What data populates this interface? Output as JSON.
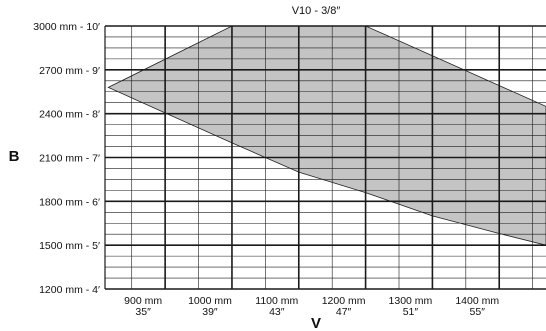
{
  "chart_data": {
    "type": "area",
    "title": "V10 - 3/8″",
    "xlabel": "V",
    "ylabel": "B",
    "xlim": [
      810,
      1470
    ],
    "ylim": [
      1200,
      3000
    ],
    "grid": true,
    "x_ticks": [
      {
        "value": 900,
        "mm": "900 mm",
        "in": "35″"
      },
      {
        "value": 1000,
        "mm": "1000 mm",
        "in": "39″"
      },
      {
        "value": 1100,
        "mm": "1100 mm",
        "in": "43″"
      },
      {
        "value": 1200,
        "mm": "1200 mm",
        "in": "47″"
      },
      {
        "value": 1300,
        "mm": "1300 mm",
        "in": "51″"
      },
      {
        "value": 1400,
        "mm": "1400 mm",
        "in": "55″"
      }
    ],
    "y_ticks": [
      {
        "value": 3000,
        "label": "3000 mm - 10′"
      },
      {
        "value": 2700,
        "label": "2700 mm - 9′"
      },
      {
        "value": 2400,
        "label": "2400 mm - 8′"
      },
      {
        "value": 2100,
        "label": "2100 mm - 7′"
      },
      {
        "value": 1800,
        "label": "1800 mm - 6′"
      },
      {
        "value": 1500,
        "label": "1500 mm - 5′"
      },
      {
        "value": 1200,
        "label": "1200 mm - 4′"
      }
    ],
    "region": {
      "upper": [
        [
          815,
          2580
        ],
        [
          1000,
          3000
        ],
        [
          1200,
          3000
        ],
        [
          1470,
          2450
        ]
      ],
      "lower": [
        [
          815,
          2580
        ],
        [
          1000,
          2200
        ],
        [
          1100,
          2000
        ],
        [
          1200,
          1860
        ],
        [
          1300,
          1700
        ],
        [
          1400,
          1580
        ],
        [
          1470,
          1500
        ]
      ]
    },
    "colors": {
      "fill": "#c4c4c4",
      "grid": "#1a1a1a",
      "outline": "#222222"
    }
  }
}
